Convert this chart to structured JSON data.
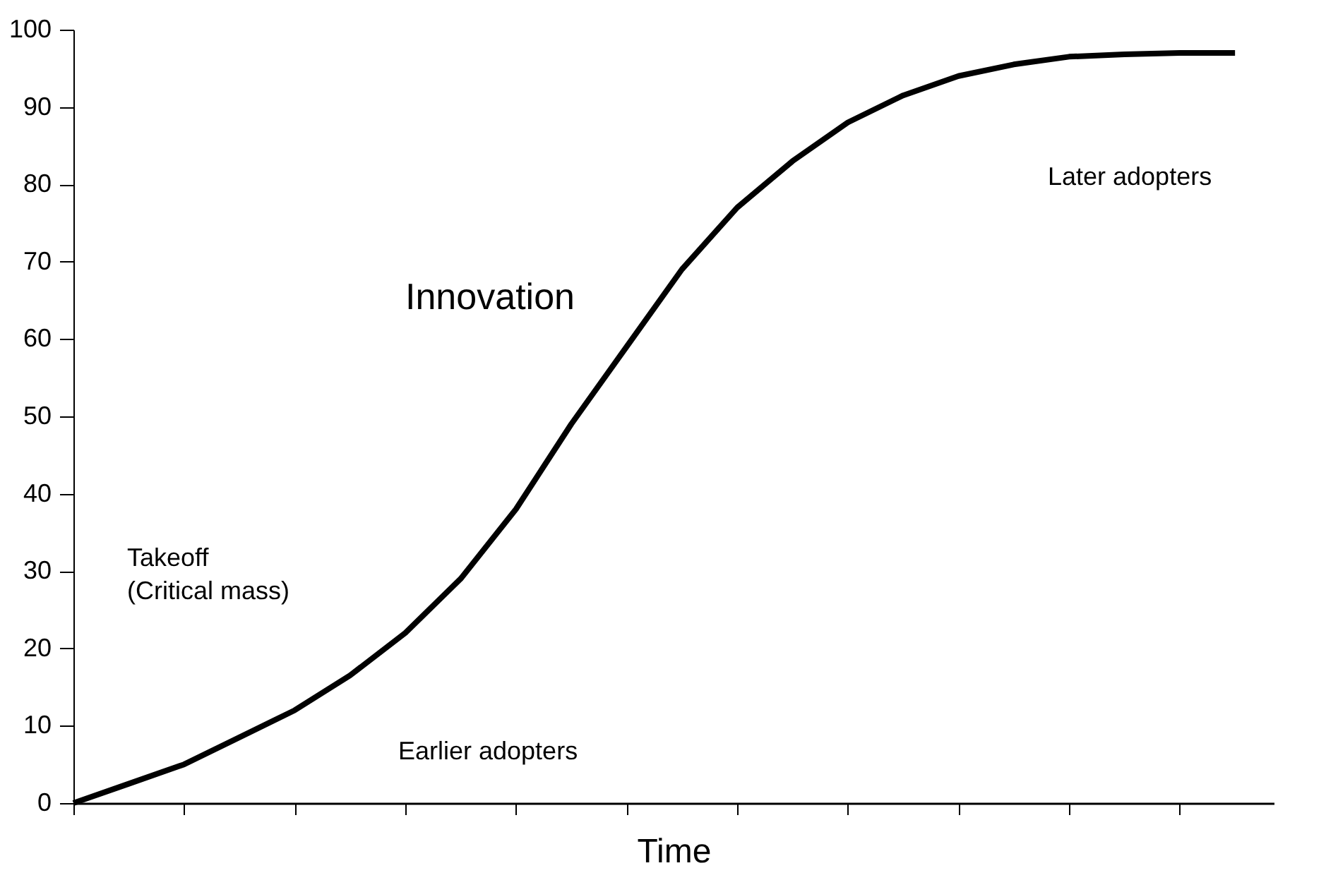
{
  "chart_data": {
    "type": "line",
    "xlabel": "Time",
    "categories": [
      null,
      null,
      null,
      null,
      null,
      null,
      null,
      null,
      null,
      null,
      null,
      null,
      null,
      null,
      null,
      null,
      null,
      null,
      null,
      null,
      null,
      null
    ],
    "values": [
      0,
      2.5,
      5,
      8.5,
      12,
      16.5,
      22,
      29,
      38,
      49,
      59,
      69,
      77,
      83,
      88,
      91.5,
      94,
      95.5,
      96.5,
      96.8,
      97,
      97
    ],
    "color": "#000000",
    "ylim": [
      0,
      100
    ],
    "yticks": [
      0,
      10,
      20,
      30,
      40,
      50,
      60,
      70,
      80,
      90,
      100
    ],
    "grid": false,
    "tick_labels": "y",
    "marker": "none",
    "line_style": "solid",
    "annotations": [
      "Innovation",
      "Later adopters",
      "Takeoff\n(Critical mass)",
      "Earlier adopters"
    ]
  }
}
